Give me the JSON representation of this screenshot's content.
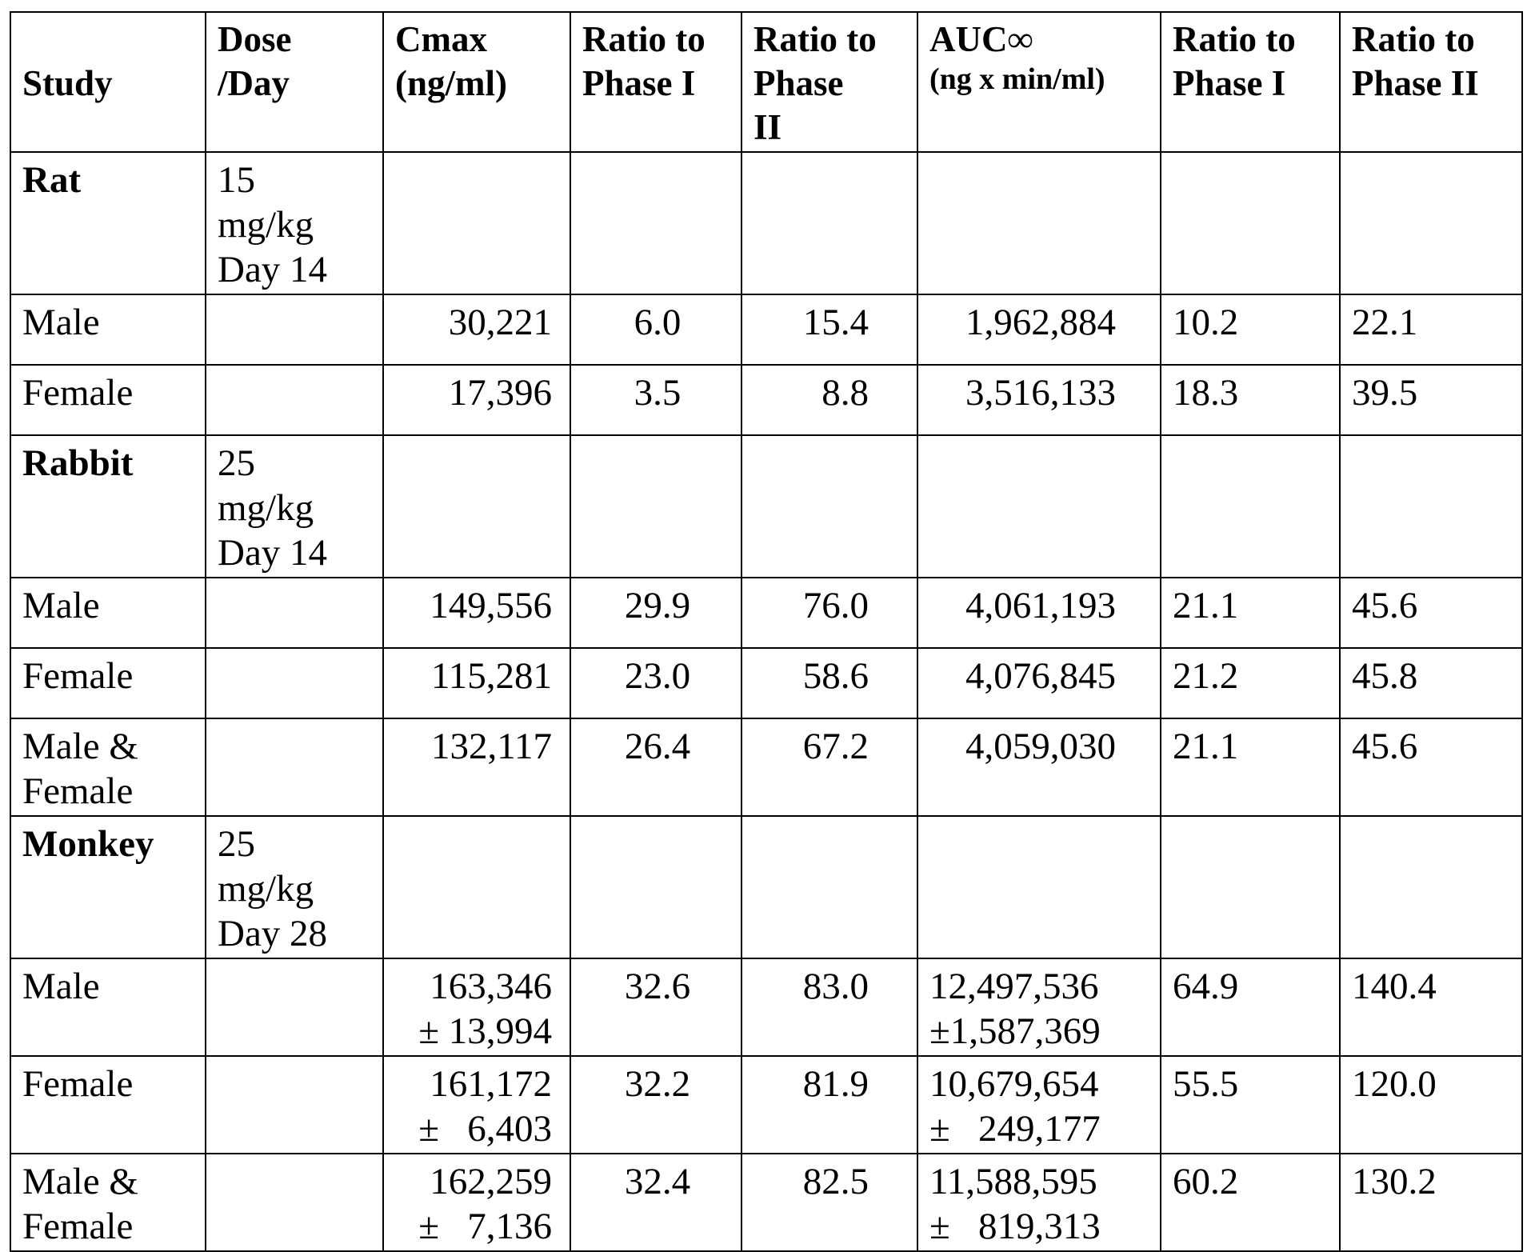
{
  "headers": {
    "study": "Study",
    "dose": "Dose\n/Day",
    "cmax": "Cmax\n(ng/ml)",
    "ratio_cmax_p1": "Ratio to\nPhase I",
    "ratio_cmax_p2": "Ratio to\nPhase\nII",
    "auc": "AUC∞",
    "auc_unit": "(ng x min/ml)",
    "ratio_auc_p1": "Ratio to\nPhase I",
    "ratio_auc_p2": "Ratio to\nPhase II"
  },
  "groups": [
    {
      "species": "Rat",
      "dose": "15\nmg/kg\nDay 14",
      "rows": [
        {
          "label": "Male",
          "cmax": "30,221",
          "r1": "6.0",
          "r2": "15.4",
          "auc": "1,962,884",
          "a1": "10.2",
          "a2": "22.1"
        },
        {
          "label": "Female",
          "cmax": "17,396",
          "r1": "3.5",
          "r2": "8.8",
          "auc": "3,516,133",
          "a1": "18.3",
          "a2": "39.5"
        }
      ]
    },
    {
      "species": "Rabbit",
      "dose": "25\nmg/kg\nDay 14",
      "rows": [
        {
          "label": "Male",
          "cmax": "149,556",
          "r1": "29.9",
          "r2": "76.0",
          "auc": "4,061,193",
          "a1": "21.1",
          "a2": "45.6"
        },
        {
          "label": "Female",
          "cmax": "115,281",
          "r1": "23.0",
          "r2": "58.6",
          "auc": "4,076,845",
          "a1": "21.2",
          "a2": "45.8"
        },
        {
          "label": "Male &\nFemale",
          "cmax": "132,117",
          "r1": "26.4",
          "r2": "67.2",
          "auc": "4,059,030",
          "a1": "21.1",
          "a2": "45.6"
        }
      ]
    },
    {
      "species": "Monkey",
      "dose": "25\nmg/kg\nDay 28",
      "rows": [
        {
          "label": "Male",
          "cmax": "163,346\n± 13,994",
          "r1": "32.6",
          "r2": "83.0",
          "auc": "12,497,536\n±1,587,369",
          "a1": "64.9",
          "a2": "140.4"
        },
        {
          "label": "Female",
          "cmax": "161,172\n±   6,403",
          "r1": "32.2",
          "r2": "81.9",
          "auc": "10,679,654\n±   249,177",
          "a1": "55.5",
          "a2": "120.0"
        },
        {
          "label": "Male &\nFemale",
          "cmax": "162,259\n±   7,136",
          "r1": "32.4",
          "r2": "82.5",
          "auc": "11,588,595\n±   819,313",
          "a1": "60.2",
          "a2": "130.2"
        }
      ]
    }
  ]
}
